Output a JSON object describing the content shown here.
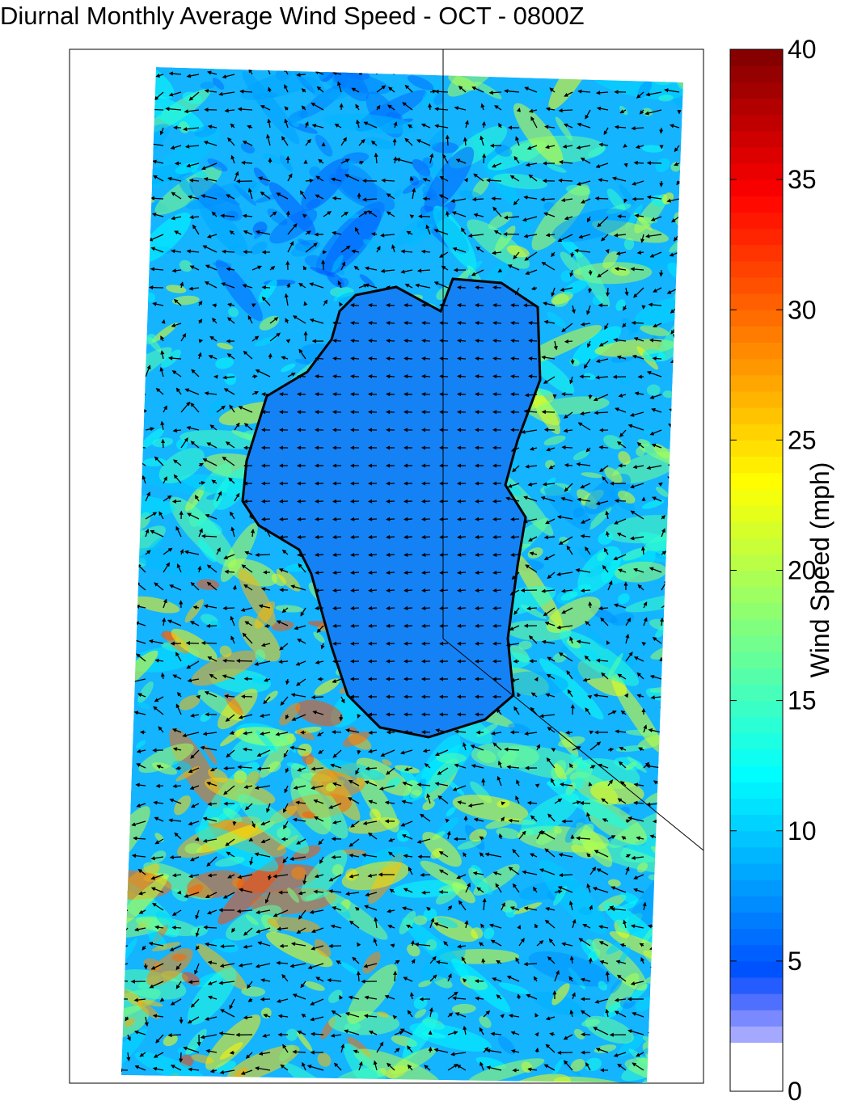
{
  "title": "Diurnal Monthly Average Wind Speed - OCT - 0800Z",
  "colorbar": {
    "label": "Wind Speed (mph)",
    "lim": [
      0,
      40
    ],
    "ticks": [
      0,
      5,
      10,
      15,
      20,
      25,
      30,
      35,
      40
    ],
    "colormap": "jet"
  }
}
